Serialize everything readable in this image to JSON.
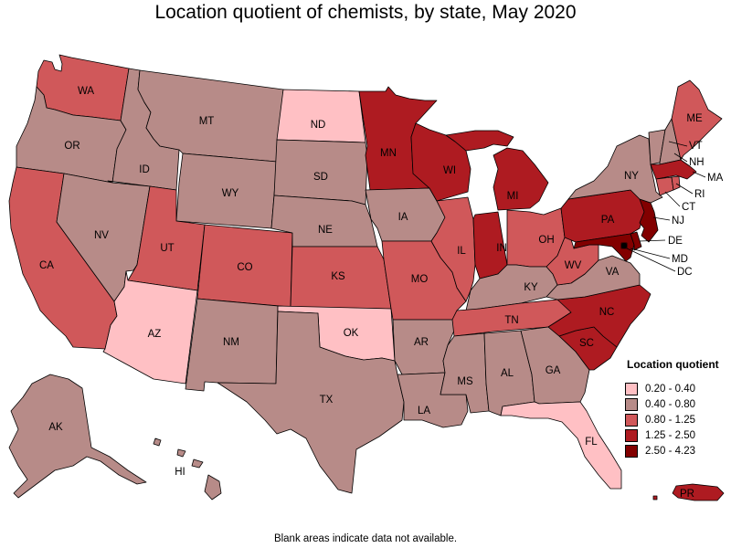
{
  "title": "Location quotient of chemists, by state, May 2020",
  "note": "Blank areas indicate data not available.",
  "legend": {
    "title": "Location quotient",
    "items": [
      {
        "label": "0.20 - 0.40",
        "color": "#ffc0c4"
      },
      {
        "label": "0.40 - 0.80",
        "color": "#b78b88"
      },
      {
        "label": "0.80 - 1.25",
        "color": "#d0585a"
      },
      {
        "label": "1.25 - 2.50",
        "color": "#ae1b21"
      },
      {
        "label": "2.50 - 4.23",
        "color": "#820000"
      }
    ]
  },
  "states": {
    "WA": {
      "label": "WA",
      "class": 2
    },
    "OR": {
      "label": "OR",
      "class": 1
    },
    "CA": {
      "label": "CA",
      "class": 2
    },
    "ID": {
      "label": "ID",
      "class": 1
    },
    "NV": {
      "label": "NV",
      "class": 1
    },
    "MT": {
      "label": "MT",
      "class": 1
    },
    "WY": {
      "label": "WY",
      "class": 1
    },
    "UT": {
      "label": "UT",
      "class": 2
    },
    "AZ": {
      "label": "AZ",
      "class": 0
    },
    "CO": {
      "label": "CO",
      "class": 2
    },
    "NM": {
      "label": "NM",
      "class": 1
    },
    "ND": {
      "label": "ND",
      "class": 0
    },
    "SD": {
      "label": "SD",
      "class": 1
    },
    "NE": {
      "label": "NE",
      "class": 1
    },
    "KS": {
      "label": "KS",
      "class": 2
    },
    "OK": {
      "label": "OK",
      "class": 0
    },
    "TX": {
      "label": "TX",
      "class": 1
    },
    "MN": {
      "label": "MN",
      "class": 3
    },
    "IA": {
      "label": "IA",
      "class": 1
    },
    "MO": {
      "label": "MO",
      "class": 2
    },
    "AR": {
      "label": "AR",
      "class": 1
    },
    "LA": {
      "label": "LA",
      "class": 1
    },
    "WI": {
      "label": "WI",
      "class": 3
    },
    "IL": {
      "label": "IL",
      "class": 2
    },
    "MI": {
      "label": "MI",
      "class": 3
    },
    "IN": {
      "label": "IN",
      "class": 3
    },
    "OH": {
      "label": "OH",
      "class": 2
    },
    "KY": {
      "label": "KY",
      "class": 1
    },
    "TN": {
      "label": "TN",
      "class": 2
    },
    "MS": {
      "label": "MS",
      "class": 1
    },
    "AL": {
      "label": "AL",
      "class": 1
    },
    "GA": {
      "label": "GA",
      "class": 1
    },
    "FL": {
      "label": "FL",
      "class": 0
    },
    "SC": {
      "label": "SC",
      "class": 3
    },
    "NC": {
      "label": "NC",
      "class": 3
    },
    "VA": {
      "label": "VA",
      "class": 1
    },
    "WV": {
      "label": "WV",
      "class": 2
    },
    "PA": {
      "label": "PA",
      "class": 3
    },
    "NY": {
      "label": "NY",
      "class": 1
    },
    "VT": {
      "label": "VT",
      "class": 1
    },
    "NH": {
      "label": "NH",
      "class": 1
    },
    "ME": {
      "label": "ME",
      "class": 2
    },
    "MA": {
      "label": "MA",
      "class": 3
    },
    "RI": {
      "label": "RI",
      "class": 2
    },
    "CT": {
      "label": "CT",
      "class": 2
    },
    "NJ": {
      "label": "NJ",
      "class": 4
    },
    "DE": {
      "label": "DE",
      "class": 4
    },
    "MD": {
      "label": "MD",
      "class": 4
    },
    "DC": {
      "label": "DC",
      "class": 4
    },
    "AK": {
      "label": "AK",
      "class": 1
    },
    "HI": {
      "label": "HI",
      "class": 1
    },
    "PR": {
      "label": "PR",
      "class": 3
    }
  }
}
